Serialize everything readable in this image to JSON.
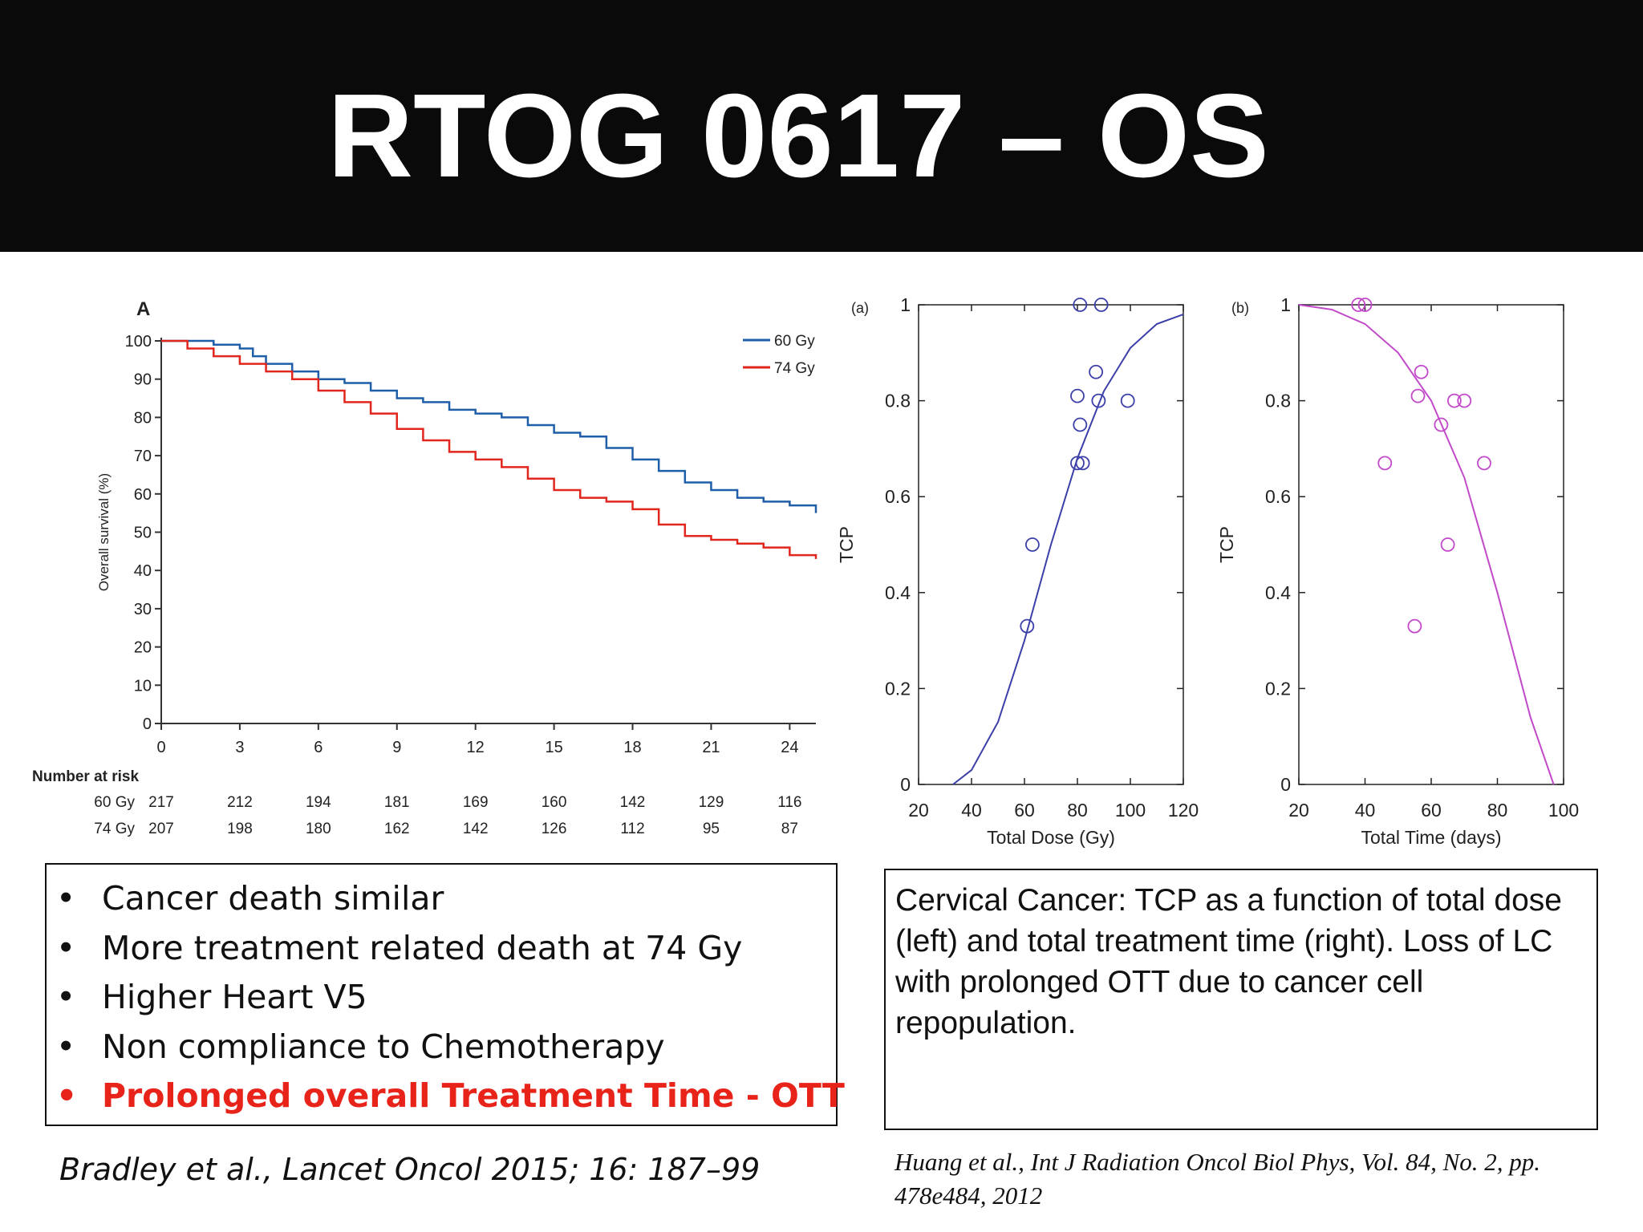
{
  "slide": {
    "title": "RTOG 0617 – OS",
    "bullets": [
      {
        "text": "Cancer death similar",
        "highlight": false
      },
      {
        "text": "More treatment related death at 74 Gy",
        "highlight": false
      },
      {
        "text": "Higher Heart V5",
        "highlight": false
      },
      {
        "text": "Non compliance to Chemotherapy",
        "highlight": false
      },
      {
        "text": "Prolonged overall Treatment Time - OTT",
        "highlight": true
      }
    ],
    "bullet_symbol": "•",
    "caption": "Cervical Cancer: TCP as a function of total dose (left) and total treatment time (right). Loss of LC with prolonged OTT due to cancer cell repopulation.",
    "ref_left": "Bradley et al., Lancet Oncol 2015; 16: 187–99",
    "ref_right": "Huang et al., Int J Radiation Oncol Biol Phys, Vol. 84, No. 2, pp. 478e484, 2012",
    "colors": {
      "highlight": "#e8231a",
      "title_bar": "#0a0a0a",
      "km_60": "#1f5ea8",
      "km_74": "#e0261d",
      "tcp_dose": "#3b3fa8",
      "tcp_time": "#c249c9"
    }
  },
  "chart_data": [
    {
      "type": "line",
      "panel_label": "A",
      "ylabel": "Overall survival (%)",
      "xlim": [
        0,
        25
      ],
      "ylim": [
        0,
        100
      ],
      "xticks": [
        0,
        3,
        6,
        9,
        12,
        15,
        18,
        21,
        24
      ],
      "yticks": [
        0,
        10,
        20,
        30,
        40,
        50,
        60,
        70,
        80,
        90,
        100
      ],
      "legend": "top-right",
      "series": [
        {
          "name": "60 Gy",
          "color": "#1f5ea8",
          "x": [
            0,
            1,
            2,
            3,
            3.5,
            4,
            5,
            6,
            7,
            8,
            9,
            10,
            11,
            12,
            13,
            14,
            15,
            16,
            17,
            18,
            19,
            20,
            21,
            22,
            23,
            24,
            25
          ],
          "y": [
            100,
            100,
            99,
            98,
            96,
            94,
            92,
            90,
            89,
            87,
            85,
            84,
            82,
            81,
            80,
            78,
            76,
            75,
            72,
            69,
            66,
            63,
            61,
            59,
            58,
            57,
            55
          ]
        },
        {
          "name": "74 Gy",
          "color": "#e0261d",
          "x": [
            0,
            1,
            2,
            3,
            4,
            5,
            6,
            7,
            8,
            9,
            10,
            11,
            12,
            13,
            14,
            15,
            16,
            17,
            18,
            19,
            20,
            21,
            22,
            23,
            24,
            25
          ],
          "y": [
            100,
            98,
            96,
            94,
            92,
            90,
            87,
            84,
            81,
            77,
            74,
            71,
            69,
            67,
            64,
            61,
            59,
            58,
            56,
            52,
            49,
            48,
            47,
            46,
            44,
            43
          ]
        }
      ],
      "risk_table": {
        "title": "Number at risk",
        "times": [
          0,
          3,
          6,
          9,
          12,
          15,
          18,
          21,
          24
        ],
        "rows": [
          {
            "label": "60 Gy",
            "values": [
              217,
              212,
              194,
              181,
              169,
              160,
              142,
              129,
              116
            ]
          },
          {
            "label": "74 Gy",
            "values": [
              207,
              198,
              180,
              162,
              142,
              126,
              112,
              95,
              87
            ]
          }
        ]
      }
    },
    {
      "type": "scatter",
      "panel_label": "(a)",
      "xlabel": "Total Dose (Gy)",
      "ylabel": "TCP",
      "xlim": [
        20,
        120
      ],
      "ylim": [
        0,
        1
      ],
      "xticks": [
        20,
        40,
        60,
        80,
        100,
        120
      ],
      "yticks": [
        0,
        0.2,
        0.4,
        0.6,
        0.8,
        1
      ],
      "ytick_labels": [
        "0",
        "0.2",
        "0.4",
        "0.6",
        "0.8",
        "1"
      ],
      "points": [
        {
          "x": 61,
          "y": 0.33
        },
        {
          "x": 63,
          "y": 0.5
        },
        {
          "x": 80,
          "y": 0.67
        },
        {
          "x": 82,
          "y": 0.67
        },
        {
          "x": 81,
          "y": 0.75
        },
        {
          "x": 80,
          "y": 0.81
        },
        {
          "x": 87,
          "y": 0.86
        },
        {
          "x": 88,
          "y": 0.8
        },
        {
          "x": 99,
          "y": 0.8
        },
        {
          "x": 81,
          "y": 1.0
        },
        {
          "x": 89,
          "y": 1.0
        }
      ],
      "fit_curve": {
        "x": [
          33,
          40,
          50,
          60,
          70,
          80,
          90,
          100,
          110,
          120
        ],
        "y": [
          0,
          0.03,
          0.13,
          0.3,
          0.5,
          0.68,
          0.82,
          0.91,
          0.96,
          0.98
        ]
      }
    },
    {
      "type": "scatter",
      "panel_label": "(b)",
      "xlabel": "Total Time (days)",
      "ylabel": "TCP",
      "xlim": [
        20,
        100
      ],
      "ylim": [
        0,
        1
      ],
      "xticks": [
        20,
        40,
        60,
        80,
        100
      ],
      "yticks": [
        0,
        0.2,
        0.4,
        0.6,
        0.8,
        1
      ],
      "ytick_labels": [
        "0",
        "0.2",
        "0.4",
        "0.6",
        "0.8",
        "1"
      ],
      "points": [
        {
          "x": 38,
          "y": 1.0
        },
        {
          "x": 40,
          "y": 1.0
        },
        {
          "x": 46,
          "y": 0.67
        },
        {
          "x": 55,
          "y": 0.33
        },
        {
          "x": 56,
          "y": 0.81
        },
        {
          "x": 57,
          "y": 0.86
        },
        {
          "x": 63,
          "y": 0.75
        },
        {
          "x": 65,
          "y": 0.5
        },
        {
          "x": 67,
          "y": 0.8
        },
        {
          "x": 70,
          "y": 0.8
        },
        {
          "x": 76,
          "y": 0.67
        }
      ],
      "fit_curve": {
        "x": [
          20,
          30,
          40,
          50,
          60,
          70,
          80,
          90,
          97
        ],
        "y": [
          1.0,
          0.99,
          0.96,
          0.9,
          0.8,
          0.64,
          0.4,
          0.14,
          0
        ]
      }
    }
  ]
}
